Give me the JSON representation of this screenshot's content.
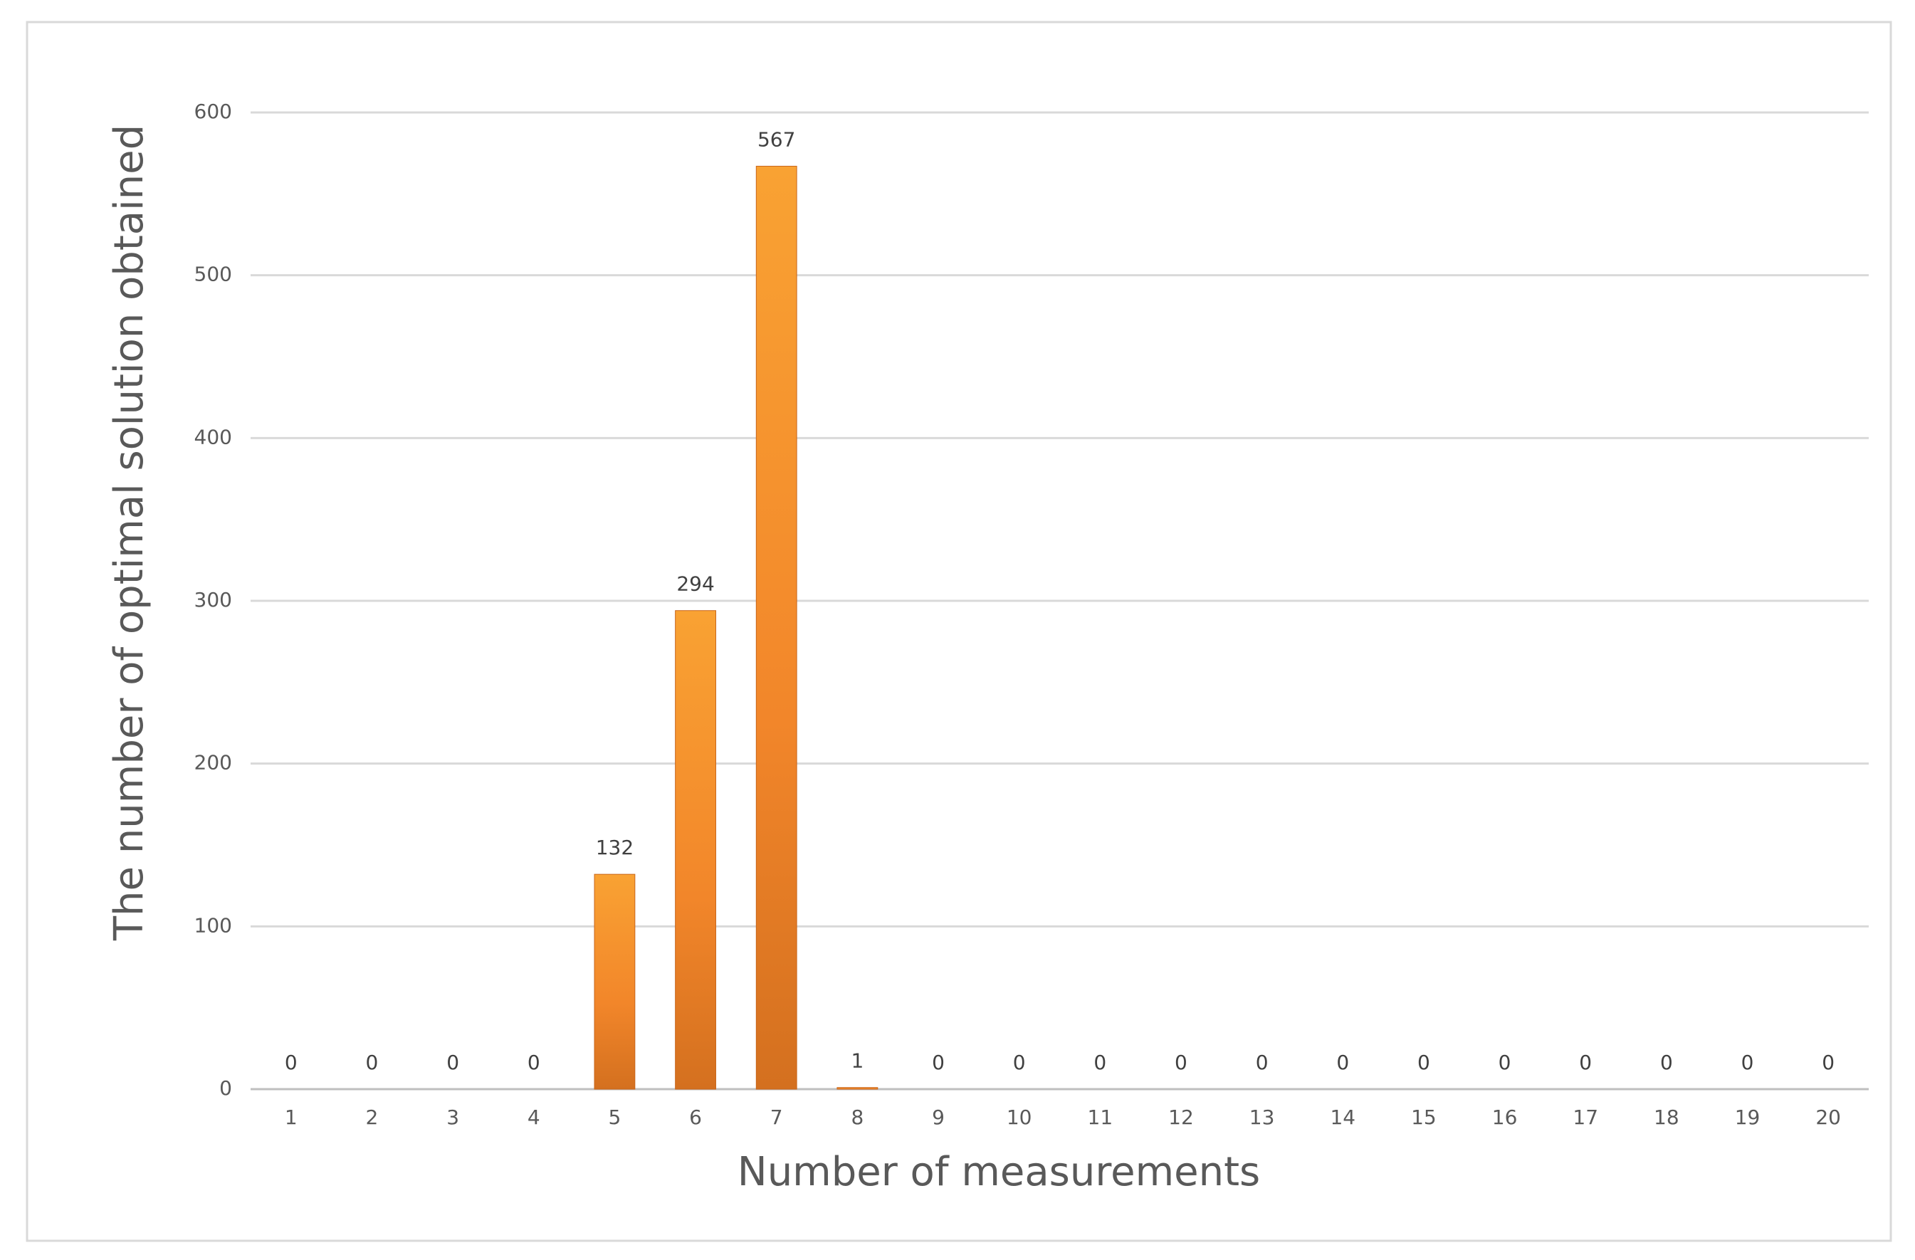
{
  "chart_data": {
    "type": "bar",
    "x_label": "Number of measurements",
    "y_label": "The number of optimal solution obtained",
    "categories": [
      "1",
      "2",
      "3",
      "4",
      "5",
      "6",
      "7",
      "8",
      "9",
      "10",
      "11",
      "12",
      "13",
      "14",
      "15",
      "16",
      "17",
      "18",
      "19",
      "20"
    ],
    "values": [
      0,
      0,
      0,
      0,
      132,
      294,
      567,
      1,
      0,
      0,
      0,
      0,
      0,
      0,
      0,
      0,
      0,
      0,
      0,
      0
    ],
    "color": "#f28a26",
    "ylim": [
      0,
      600
    ],
    "yticks": [
      0,
      100,
      200,
      300,
      400,
      500,
      600
    ],
    "grid": true
  }
}
